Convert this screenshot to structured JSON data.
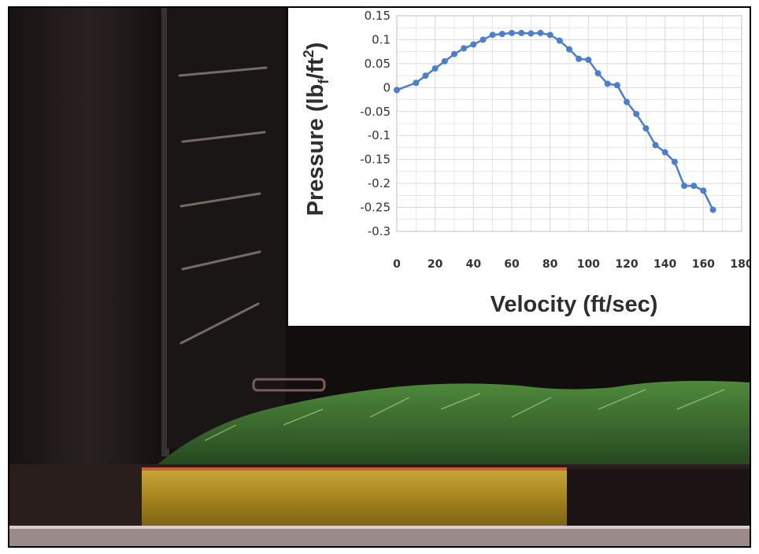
{
  "colors": {
    "series": "#4a7fd0",
    "grid": "#d9d9d9",
    "photo_background": "#0f0c0c",
    "turf": "#3c6e2e",
    "sand_layer": "#b89a2a"
  },
  "chart_data": {
    "type": "line",
    "title": "",
    "xlabel": "Velocity (ft/sec)",
    "ylabel_parts": {
      "main": "Pressure (lb",
      "sub": "f",
      "mid": "/ft",
      "sup": "2",
      "end": ")"
    },
    "xlim": [
      0,
      180
    ],
    "ylim": [
      -0.3,
      0.15
    ],
    "x_ticks": [
      "0",
      "20",
      "40",
      "60",
      "80",
      "100",
      "120",
      "140",
      "160",
      "180"
    ],
    "y_ticks": [
      "0.15",
      "0.1",
      "0.05",
      "0",
      "-0.05",
      "-0.1",
      "-0.15",
      "-0.2",
      "-0.25",
      "-0.3"
    ],
    "grid": true,
    "legend": "none",
    "series": [
      {
        "x": [
          0,
          10,
          15,
          20,
          25,
          30,
          35,
          40,
          45,
          50,
          55,
          60,
          65,
          70,
          75,
          80,
          85,
          90,
          95,
          100,
          105,
          110,
          115,
          120,
          125,
          130,
          135,
          140,
          145,
          150,
          155,
          160,
          165
        ],
        "y": [
          -0.005,
          0.01,
          0.025,
          0.04,
          0.055,
          0.07,
          0.082,
          0.09,
          0.1,
          0.11,
          0.112,
          0.114,
          0.114,
          0.113,
          0.114,
          0.11,
          0.098,
          0.08,
          0.06,
          0.058,
          0.03,
          0.008,
          0.005,
          -0.03,
          -0.055,
          -0.085,
          -0.12,
          -0.135,
          -0.155,
          -0.205,
          -0.205,
          -0.215,
          -0.255
        ]
      }
    ]
  }
}
